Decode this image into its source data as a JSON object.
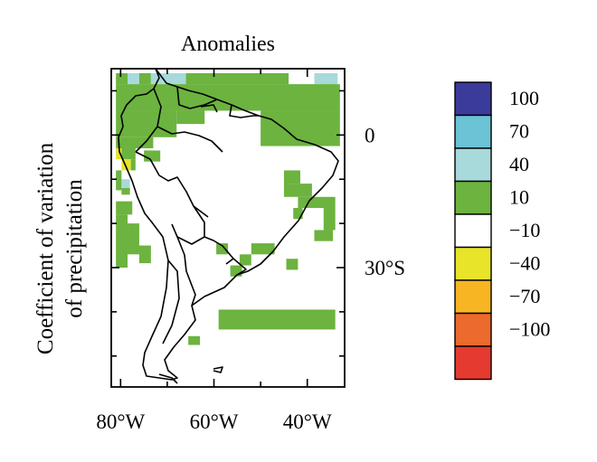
{
  "title": "Anomalies",
  "ylabel_line1": "Coefficient of variation",
  "ylabel_line2": "of precipitation",
  "map": {
    "lon_range": [
      -82,
      -32
    ],
    "lat_range": [
      15,
      -57
    ],
    "x_ticks": [
      {
        "lon": -80,
        "label": "80°W"
      },
      {
        "lon": -60,
        "label": "60°W"
      },
      {
        "lon": -40,
        "label": "40°W"
      }
    ],
    "y_ticks": [
      {
        "lat": 0,
        "label": "0"
      },
      {
        "lat": -30,
        "label": "30°S"
      }
    ],
    "cell_size_deg": 2.5,
    "anomaly_cells": [
      {
        "lon": -81,
        "lat": 14,
        "w": 2.5,
        "h": 2.5,
        "value": 25
      },
      {
        "lon": -78.5,
        "lat": 14,
        "w": 2.5,
        "h": 2.5,
        "value": 55
      },
      {
        "lon": -76,
        "lat": 14,
        "w": 2.5,
        "h": 2.5,
        "value": 25
      },
      {
        "lon": -73.5,
        "lat": 14,
        "w": 2.5,
        "h": 2.5,
        "value": 55
      },
      {
        "lon": -71,
        "lat": 14,
        "w": 5,
        "h": 2.5,
        "value": 55
      },
      {
        "lon": -66,
        "lat": 14,
        "w": 22,
        "h": 2.5,
        "value": 25
      },
      {
        "lon": -38.5,
        "lat": 14,
        "w": 5,
        "h": 2.5,
        "value": 55
      },
      {
        "lon": -81,
        "lat": 11.5,
        "w": 48,
        "h": 6,
        "value": 25
      },
      {
        "lon": -81,
        "lat": 5.5,
        "w": 13,
        "h": 6,
        "value": 25
      },
      {
        "lon": -68,
        "lat": 5.5,
        "w": 6,
        "h": 3,
        "value": 25
      },
      {
        "lon": -50,
        "lat": 5.5,
        "w": 17,
        "h": 8,
        "value": 25
      },
      {
        "lon": -81,
        "lat": -0.5,
        "w": 8,
        "h": 2.5,
        "value": 25
      },
      {
        "lon": -81,
        "lat": -3,
        "w": 1.2,
        "h": 2.5,
        "value": -25
      },
      {
        "lon": -79.8,
        "lat": -3,
        "w": 3,
        "h": 2.5,
        "value": 25
      },
      {
        "lon": -79.8,
        "lat": -5.5,
        "w": 2,
        "h": 2.5,
        "value": -25
      },
      {
        "lon": -77.8,
        "lat": -5.5,
        "w": 1,
        "h": 2.5,
        "value": 25
      },
      {
        "lon": -75,
        "lat": -3.5,
        "w": 3.5,
        "h": 2.5,
        "value": 25
      },
      {
        "lon": -81,
        "lat": -8,
        "w": 1.2,
        "h": 4.5,
        "value": 25
      },
      {
        "lon": -79.8,
        "lat": -10,
        "w": 1.8,
        "h": 2,
        "value": 55
      },
      {
        "lon": -79.8,
        "lat": -12,
        "w": 1.8,
        "h": 1.5,
        "value": 25
      },
      {
        "lon": -81,
        "lat": -15,
        "w": 3.5,
        "h": 3,
        "value": 25
      },
      {
        "lon": -81,
        "lat": -18,
        "w": 2.5,
        "h": 12,
        "value": 25
      },
      {
        "lon": -78.5,
        "lat": -20,
        "w": 2.5,
        "h": 7,
        "value": 25
      },
      {
        "lon": -76,
        "lat": -25,
        "w": 2.5,
        "h": 4,
        "value": 25
      },
      {
        "lon": -45,
        "lat": -8,
        "w": 3.5,
        "h": 3,
        "value": 25
      },
      {
        "lon": -45,
        "lat": -11,
        "w": 6,
        "h": 3,
        "value": 25
      },
      {
        "lon": -42,
        "lat": -14,
        "w": 8,
        "h": 2.5,
        "value": 25
      },
      {
        "lon": -36.5,
        "lat": -16.5,
        "w": 2.5,
        "h": 5,
        "value": 25
      },
      {
        "lon": -43,
        "lat": -16.5,
        "w": 2,
        "h": 2.5,
        "value": 25
      },
      {
        "lon": -38.5,
        "lat": -21.5,
        "w": 4,
        "h": 2.5,
        "value": 25
      },
      {
        "lon": -52,
        "lat": -24.5,
        "w": 5,
        "h": 2.5,
        "value": 25
      },
      {
        "lon": -54.5,
        "lat": -27,
        "w": 2.5,
        "h": 2.5,
        "value": 25
      },
      {
        "lon": -59.5,
        "lat": -24.5,
        "w": 2.5,
        "h": 2.5,
        "value": 25
      },
      {
        "lon": -56.5,
        "lat": -29.5,
        "w": 2.5,
        "h": 2.5,
        "value": 25
      },
      {
        "lon": -44.5,
        "lat": -28,
        "w": 2.5,
        "h": 2.5,
        "value": 25
      },
      {
        "lon": -59,
        "lat": -39.5,
        "w": 25,
        "h": 4.5,
        "value": 25
      },
      {
        "lon": -65.5,
        "lat": -45.5,
        "w": 2.5,
        "h": 2,
        "value": 25
      }
    ]
  },
  "legend": {
    "entries": [
      {
        "label": "100",
        "color": "#3b3b9c"
      },
      {
        "label": "70",
        "color": "#6cc3d5"
      },
      {
        "label": "40",
        "color": "#a8d9db"
      },
      {
        "label": "10",
        "color": "#6cb33f"
      },
      {
        "label": "−10",
        "color": "#ffffff"
      },
      {
        "label": "−40",
        "color": "#e7e42a"
      },
      {
        "label": "−70",
        "color": "#f7b523"
      },
      {
        "label": "−100",
        "color": "#ec6a2d"
      }
    ],
    "bottom_color": "#e53a2f"
  },
  "colors": {
    "land_outline": "#000000",
    "positive_10_40": "#6cb33f",
    "positive_40_70": "#a8d9db",
    "negative_10_40": "#e7e42a"
  }
}
